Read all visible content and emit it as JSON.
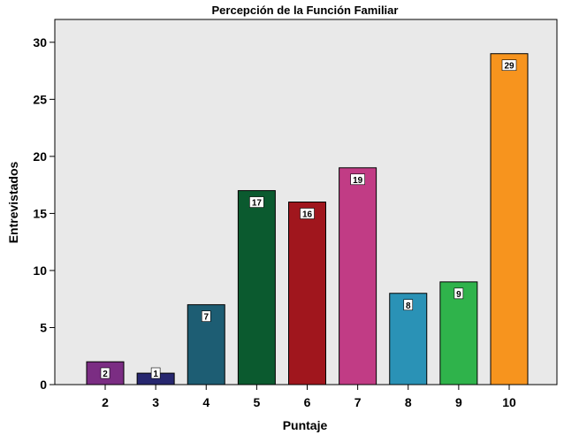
{
  "chart_data": {
    "type": "bar",
    "title": "Percepción de la Función Familiar",
    "xlabel": "Puntaje",
    "ylabel": "Entrevistados",
    "categories": [
      "2",
      "3",
      "4",
      "5",
      "6",
      "7",
      "8",
      "9",
      "10"
    ],
    "values": [
      2,
      1,
      7,
      17,
      16,
      19,
      8,
      9,
      29
    ],
    "value_labels": [
      "2",
      "1",
      "7",
      "17",
      "16",
      "19",
      "8",
      "9",
      "29"
    ],
    "ylim": [
      0,
      32
    ],
    "yticks": [
      "0",
      "5",
      "10",
      "15",
      "20",
      "25",
      "30"
    ],
    "bar_colors": [
      "#7b2d83",
      "#27276f",
      "#1d5d73",
      "#0b5a2f",
      "#a0161d",
      "#c13c85",
      "#2a92b6",
      "#2fb34b",
      "#f7941e"
    ],
    "plot_background": "#e9e9e9",
    "grid": false,
    "legend": "none"
  }
}
